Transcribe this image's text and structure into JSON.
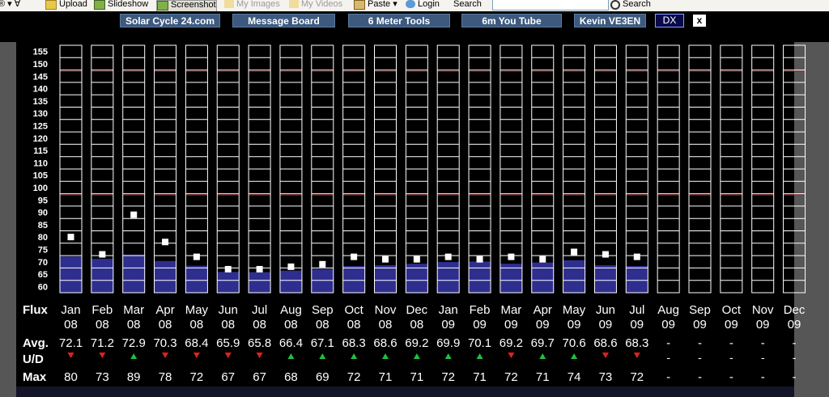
{
  "toolbar": {
    "items": [
      {
        "label": "Upload",
        "icon": "upload-icon",
        "disabled": false
      },
      {
        "label": "Slideshow",
        "icon": "slideshow-icon",
        "disabled": false
      },
      {
        "label": "Screenshot",
        "icon": "screenshot-icon",
        "disabled": false
      },
      {
        "label": "My Images",
        "icon": "folder-icon",
        "disabled": true
      },
      {
        "label": "My Videos",
        "icon": "folder-icon",
        "disabled": true
      },
      {
        "label": "Paste",
        "icon": "paste-icon",
        "disabled": false
      },
      {
        "label": "Login",
        "icon": "login-icon",
        "disabled": false
      }
    ],
    "search_label": "Search",
    "search_button": "Search"
  },
  "nav": {
    "buttons": [
      "Solar Cycle 24.com",
      "Message Board",
      "6 Meter Tools",
      "6m You Tube",
      "Kevin VE3EN"
    ],
    "dx_label": "DX",
    "close_label": "x"
  },
  "colors": {
    "bar_fill": "#2e2e8f",
    "grid_line": "#ffffff",
    "ref_line": "#b02020",
    "up_arrow": "#20c040",
    "down_arrow": "#e02020",
    "marker": "#ffffff"
  },
  "chart_data": {
    "type": "bar",
    "title": "",
    "xlabel": "Flux",
    "ylabel": "",
    "ylim": [
      57.5,
      157.5
    ],
    "y_ticks": [
      60,
      65,
      70,
      75,
      80,
      85,
      90,
      95,
      100,
      105,
      110,
      115,
      120,
      125,
      130,
      135,
      140,
      145,
      150,
      155
    ],
    "reference_lines": [
      97,
      147
    ],
    "months": [
      "Jan",
      "Feb",
      "Mar",
      "Apr",
      "May",
      "Jun",
      "Jul",
      "Aug",
      "Sep",
      "Oct",
      "Nov",
      "Dec",
      "Jan",
      "Feb",
      "Mar",
      "Apr",
      "May",
      "Jun",
      "Jul",
      "Aug",
      "Sep",
      "Oct",
      "Nov",
      "Dec"
    ],
    "years": [
      "08",
      "08",
      "08",
      "08",
      "08",
      "08",
      "08",
      "08",
      "08",
      "08",
      "08",
      "08",
      "09",
      "09",
      "09",
      "09",
      "09",
      "09",
      "09",
      "09",
      "09",
      "09",
      "09",
      "09"
    ],
    "row_labels": {
      "avg": "Avg.",
      "ud": "U/D",
      "max": "Max"
    },
    "avg_display": [
      "72.1",
      "71.2",
      "72.9",
      "70.3",
      "68.4",
      "65.9",
      "65.8",
      "66.4",
      "67.1",
      "68.3",
      "68.6",
      "69.2",
      "69.9",
      "70.1",
      "69.2",
      "69.7",
      "70.6",
      "68.6",
      "68.3",
      "-",
      "-",
      "-",
      "-",
      "-"
    ],
    "ud": [
      "down",
      "down",
      "up",
      "down",
      "down",
      "down",
      "down",
      "up",
      "up",
      "up",
      "up",
      "up",
      "up",
      "up",
      "down",
      "up",
      "up",
      "down",
      "down",
      "-",
      "-",
      "-",
      "-",
      "-"
    ],
    "max": [
      "80",
      "73",
      "89",
      "78",
      "72",
      "67",
      "67",
      "68",
      "69",
      "72",
      "71",
      "71",
      "72",
      "71",
      "72",
      "71",
      "74",
      "73",
      "72",
      "-",
      "-",
      "-",
      "-",
      "-"
    ],
    "series": [
      {
        "name": "Avg.",
        "values": [
          72.1,
          71.2,
          72.9,
          70.3,
          68.4,
          65.9,
          65.8,
          66.4,
          67.1,
          68.3,
          68.6,
          69.2,
          69.9,
          70.1,
          69.2,
          69.7,
          70.6,
          68.6,
          68.3,
          null,
          null,
          null,
          null,
          null
        ]
      },
      {
        "name": "Max",
        "values": [
          80,
          73,
          89,
          78,
          72,
          67,
          67,
          68,
          69,
          72,
          71,
          71,
          72,
          71,
          72,
          71,
          74,
          73,
          72,
          null,
          null,
          null,
          null,
          null
        ]
      }
    ]
  }
}
